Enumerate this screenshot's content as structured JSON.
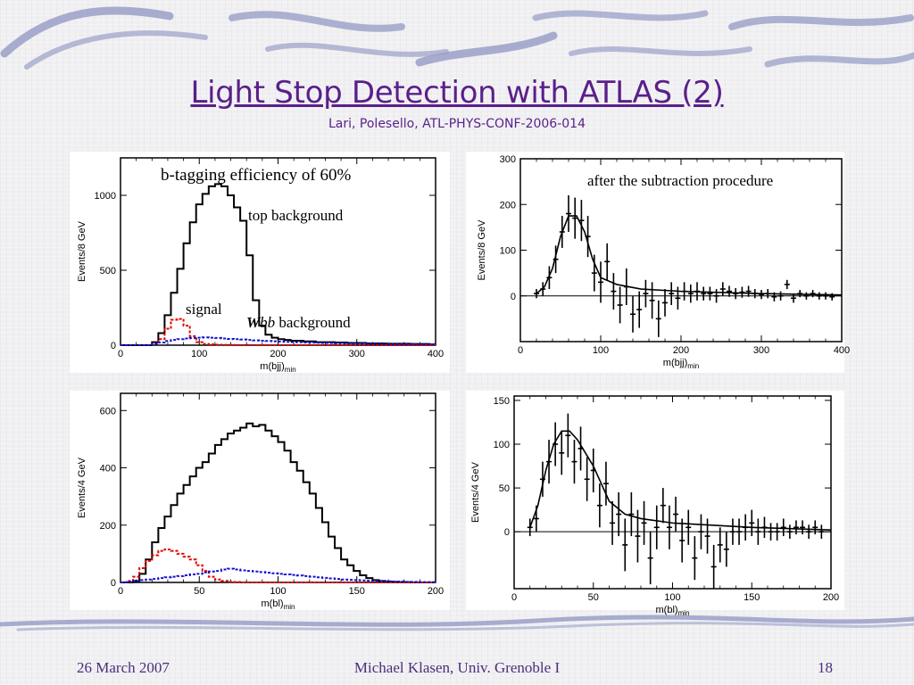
{
  "slide": {
    "title": "Light Stop Detection with ATLAS (2)",
    "subtitle": "Lari, Polesello, ATL-PHYS-CONF-2006-014",
    "footer_left": "26 March 2007",
    "footer_center": "Michael Klasen, Univ. Grenoble I",
    "footer_right": "18",
    "colors": {
      "title": "#5a1f8a",
      "footer": "#4a2d7a",
      "swirl": "#9aa0c8"
    }
  },
  "chart_data": [
    {
      "id": "p1",
      "type": "line",
      "xlabel": "m(bjj)",
      "xlabel_sub": "min",
      "ylabel": "Events/8 GeV",
      "xlim": [
        0,
        400
      ],
      "ylim": [
        0,
        1250
      ],
      "xticks": [
        0,
        100,
        200,
        300,
        400
      ],
      "yticks": [
        0,
        500,
        1000
      ],
      "annotations": [
        "b-tagging efficiency of 60%",
        "top background",
        "signal",
        "Wbb background"
      ],
      "binwidth": 8,
      "x": [
        0,
        8,
        16,
        24,
        32,
        40,
        48,
        56,
        64,
        72,
        80,
        88,
        96,
        104,
        112,
        120,
        128,
        136,
        144,
        152,
        160,
        168,
        176,
        184,
        192,
        200,
        208,
        216,
        224,
        232,
        240,
        248,
        256,
        264,
        272,
        280,
        288,
        296,
        304,
        312,
        320,
        328,
        336,
        344,
        352,
        360,
        368,
        376,
        384,
        392
      ],
      "series": [
        {
          "style": "solid-black",
          "values": [
            0,
            0,
            0,
            0,
            0,
            20,
            80,
            200,
            350,
            510,
            680,
            820,
            940,
            1010,
            1060,
            1075,
            1060,
            1000,
            920,
            830,
            600,
            300,
            130,
            70,
            50,
            40,
            35,
            30,
            30,
            25,
            25,
            20,
            20,
            20,
            18,
            18,
            15,
            15,
            15,
            12,
            12,
            12,
            10,
            10,
            10,
            10,
            8,
            8,
            8,
            5
          ]
        },
        {
          "style": "dashed-red",
          "values": [
            0,
            0,
            0,
            0,
            0,
            10,
            40,
            110,
            170,
            175,
            130,
            60,
            20,
            8,
            5,
            3,
            2,
            2,
            1,
            1,
            1,
            0,
            0,
            0,
            0,
            0,
            0,
            0,
            0,
            0,
            0,
            0,
            0,
            0,
            0,
            0,
            0,
            0,
            0,
            0,
            0,
            0,
            0,
            0,
            0,
            0,
            0,
            0,
            0,
            0
          ]
        },
        {
          "style": "dashed-blue",
          "values": [
            0,
            0,
            0,
            0,
            0,
            8,
            18,
            28,
            35,
            40,
            45,
            48,
            50,
            52,
            50,
            48,
            45,
            42,
            40,
            38,
            35,
            32,
            30,
            28,
            26,
            24,
            22,
            20,
            19,
            18,
            17,
            16,
            15,
            14,
            13,
            12,
            11,
            10,
            10,
            9,
            9,
            8,
            8,
            7,
            7,
            6,
            6,
            5,
            5,
            5
          ]
        }
      ]
    },
    {
      "id": "p2",
      "type": "scatter",
      "xlabel": "m(bjj)",
      "xlabel_sub": "min",
      "ylabel": "Events/8 GeV",
      "xlim": [
        0,
        400
      ],
      "ylim": [
        -100,
        300
      ],
      "xticks": [
        0,
        100,
        200,
        300,
        400
      ],
      "yticks": [
        0,
        100,
        200,
        300
      ],
      "annotations": [
        "after the subtraction procedure"
      ],
      "points": [
        {
          "x": 20,
          "y": 5,
          "err": 10
        },
        {
          "x": 28,
          "y": 15,
          "err": 15
        },
        {
          "x": 36,
          "y": 40,
          "err": 25
        },
        {
          "x": 44,
          "y": 80,
          "err": 30
        },
        {
          "x": 52,
          "y": 140,
          "err": 35
        },
        {
          "x": 60,
          "y": 180,
          "err": 40
        },
        {
          "x": 68,
          "y": 170,
          "err": 45
        },
        {
          "x": 76,
          "y": 165,
          "err": 45
        },
        {
          "x": 84,
          "y": 130,
          "err": 45
        },
        {
          "x": 92,
          "y": 50,
          "err": 40
        },
        {
          "x": 100,
          "y": 30,
          "err": 45
        },
        {
          "x": 108,
          "y": 75,
          "err": 40
        },
        {
          "x": 116,
          "y": 10,
          "err": 40
        },
        {
          "x": 124,
          "y": -20,
          "err": 40
        },
        {
          "x": 132,
          "y": 20,
          "err": 40
        },
        {
          "x": 140,
          "y": -40,
          "err": 40
        },
        {
          "x": 148,
          "y": -30,
          "err": 40
        },
        {
          "x": 156,
          "y": 5,
          "err": 30
        },
        {
          "x": 164,
          "y": -10,
          "err": 40
        },
        {
          "x": 172,
          "y": -50,
          "err": 40
        },
        {
          "x": 180,
          "y": -15,
          "err": 30
        },
        {
          "x": 188,
          "y": 5,
          "err": 25
        },
        {
          "x": 196,
          "y": -5,
          "err": 25
        },
        {
          "x": 204,
          "y": 10,
          "err": 20
        },
        {
          "x": 212,
          "y": 5,
          "err": 20
        },
        {
          "x": 220,
          "y": 10,
          "err": 20
        },
        {
          "x": 228,
          "y": 5,
          "err": 15
        },
        {
          "x": 236,
          "y": 5,
          "err": 15
        },
        {
          "x": 244,
          "y": 0,
          "err": 15
        },
        {
          "x": 252,
          "y": 15,
          "err": 15
        },
        {
          "x": 260,
          "y": 10,
          "err": 12
        },
        {
          "x": 268,
          "y": 5,
          "err": 12
        },
        {
          "x": 276,
          "y": 8,
          "err": 12
        },
        {
          "x": 284,
          "y": 10,
          "err": 12
        },
        {
          "x": 292,
          "y": 5,
          "err": 10
        },
        {
          "x": 300,
          "y": 3,
          "err": 10
        },
        {
          "x": 308,
          "y": 5,
          "err": 10
        },
        {
          "x": 316,
          "y": -2,
          "err": 10
        },
        {
          "x": 324,
          "y": 0,
          "err": 10
        },
        {
          "x": 332,
          "y": 25,
          "err": 10
        },
        {
          "x": 340,
          "y": -5,
          "err": 10
        },
        {
          "x": 348,
          "y": 5,
          "err": 8
        },
        {
          "x": 356,
          "y": 0,
          "err": 8
        },
        {
          "x": 364,
          "y": 5,
          "err": 8
        },
        {
          "x": 372,
          "y": 0,
          "err": 8
        },
        {
          "x": 380,
          "y": 0,
          "err": 8
        },
        {
          "x": 388,
          "y": -2,
          "err": 8
        }
      ],
      "fit": {
        "x": [
          20,
          30,
          40,
          50,
          60,
          70,
          80,
          90,
          100,
          120,
          150,
          200,
          300,
          400
        ],
        "y": [
          5,
          20,
          60,
          130,
          175,
          175,
          140,
          80,
          40,
          25,
          15,
          10,
          5,
          2
        ]
      }
    },
    {
      "id": "p3",
      "type": "line",
      "xlabel": "m(bl)",
      "xlabel_sub": "min",
      "ylabel": "Events/4 GeV",
      "xlim": [
        0,
        200
      ],
      "ylim": [
        0,
        660
      ],
      "xticks": [
        0,
        50,
        100,
        150,
        200
      ],
      "yticks": [
        0,
        200,
        400,
        600
      ],
      "binwidth": 4,
      "x": [
        0,
        4,
        8,
        12,
        16,
        20,
        24,
        28,
        32,
        36,
        40,
        44,
        48,
        52,
        56,
        60,
        64,
        68,
        72,
        76,
        80,
        84,
        88,
        92,
        96,
        100,
        104,
        108,
        112,
        116,
        120,
        124,
        128,
        132,
        136,
        140,
        144,
        148,
        152,
        156,
        160,
        164,
        168,
        172,
        176,
        180,
        184,
        188,
        192,
        196
      ],
      "series": [
        {
          "style": "solid-black",
          "values": [
            0,
            0,
            5,
            30,
            80,
            140,
            190,
            230,
            270,
            310,
            340,
            370,
            400,
            420,
            450,
            480,
            500,
            520,
            530,
            540,
            555,
            545,
            550,
            530,
            510,
            490,
            460,
            420,
            390,
            350,
            310,
            260,
            210,
            160,
            120,
            80,
            60,
            40,
            25,
            15,
            8,
            5,
            3,
            2,
            1,
            1,
            0,
            0,
            0,
            0
          ]
        },
        {
          "style": "dashed-red",
          "values": [
            0,
            5,
            20,
            50,
            75,
            95,
            110,
            115,
            110,
            100,
            90,
            80,
            60,
            40,
            20,
            10,
            5,
            2,
            1,
            0,
            0,
            0,
            0,
            0,
            0,
            0,
            0,
            0,
            0,
            0,
            0,
            0,
            0,
            0,
            0,
            0,
            0,
            0,
            0,
            0,
            0,
            0,
            0,
            0,
            0,
            0,
            0,
            0,
            0,
            0
          ]
        },
        {
          "style": "dashed-blue",
          "values": [
            0,
            2,
            5,
            8,
            10,
            12,
            15,
            18,
            20,
            22,
            25,
            28,
            30,
            35,
            38,
            40,
            45,
            48,
            45,
            42,
            40,
            38,
            36,
            34,
            32,
            30,
            28,
            26,
            24,
            22,
            20,
            18,
            16,
            14,
            12,
            10,
            9,
            8,
            7,
            6,
            5,
            5,
            4,
            3,
            3,
            2,
            2,
            1,
            1,
            1
          ]
        }
      ]
    },
    {
      "id": "p4",
      "type": "scatter",
      "xlabel": "m(bl)",
      "xlabel_sub": "min",
      "ylabel": "Events/4 GeV",
      "xlim": [
        0,
        200
      ],
      "ylim": [
        -65,
        155
      ],
      "xticks": [
        0,
        50,
        100,
        150,
        200
      ],
      "yticks": [
        0,
        50,
        100,
        150
      ],
      "points": [
        {
          "x": 10,
          "y": 5,
          "err": 10
        },
        {
          "x": 14,
          "y": 15,
          "err": 15
        },
        {
          "x": 18,
          "y": 60,
          "err": 20
        },
        {
          "x": 22,
          "y": 80,
          "err": 25
        },
        {
          "x": 26,
          "y": 100,
          "err": 25
        },
        {
          "x": 30,
          "y": 90,
          "err": 25
        },
        {
          "x": 34,
          "y": 110,
          "err": 25
        },
        {
          "x": 38,
          "y": 80,
          "err": 25
        },
        {
          "x": 42,
          "y": 95,
          "err": 25
        },
        {
          "x": 46,
          "y": 60,
          "err": 25
        },
        {
          "x": 50,
          "y": 70,
          "err": 25
        },
        {
          "x": 54,
          "y": 30,
          "err": 25
        },
        {
          "x": 58,
          "y": 55,
          "err": 25
        },
        {
          "x": 62,
          "y": 10,
          "err": 25
        },
        {
          "x": 66,
          "y": 20,
          "err": 25
        },
        {
          "x": 70,
          "y": -15,
          "err": 30
        },
        {
          "x": 74,
          "y": 20,
          "err": 25
        },
        {
          "x": 78,
          "y": -5,
          "err": 30
        },
        {
          "x": 82,
          "y": 10,
          "err": 25
        },
        {
          "x": 86,
          "y": -30,
          "err": 30
        },
        {
          "x": 90,
          "y": 5,
          "err": 25
        },
        {
          "x": 94,
          "y": 30,
          "err": 20
        },
        {
          "x": 98,
          "y": 5,
          "err": 25
        },
        {
          "x": 102,
          "y": 20,
          "err": 20
        },
        {
          "x": 106,
          "y": -10,
          "err": 25
        },
        {
          "x": 110,
          "y": 5,
          "err": 20
        },
        {
          "x": 114,
          "y": -30,
          "err": 25
        },
        {
          "x": 118,
          "y": 0,
          "err": 20
        },
        {
          "x": 122,
          "y": -5,
          "err": 20
        },
        {
          "x": 126,
          "y": -40,
          "err": 25
        },
        {
          "x": 130,
          "y": -15,
          "err": 20
        },
        {
          "x": 134,
          "y": -20,
          "err": 20
        },
        {
          "x": 138,
          "y": 0,
          "err": 15
        },
        {
          "x": 142,
          "y": 0,
          "err": 15
        },
        {
          "x": 146,
          "y": 5,
          "err": 15
        },
        {
          "x": 150,
          "y": 10,
          "err": 15
        },
        {
          "x": 154,
          "y": 0,
          "err": 15
        },
        {
          "x": 158,
          "y": 5,
          "err": 12
        },
        {
          "x": 162,
          "y": 0,
          "err": 10
        },
        {
          "x": 166,
          "y": 0,
          "err": 10
        },
        {
          "x": 170,
          "y": 5,
          "err": 10
        },
        {
          "x": 174,
          "y": 0,
          "err": 8
        },
        {
          "x": 178,
          "y": 5,
          "err": 8
        },
        {
          "x": 182,
          "y": 5,
          "err": 8
        },
        {
          "x": 186,
          "y": 0,
          "err": 8
        },
        {
          "x": 190,
          "y": 5,
          "err": 8
        },
        {
          "x": 194,
          "y": 0,
          "err": 8
        }
      ],
      "fit": {
        "x": [
          10,
          15,
          20,
          25,
          30,
          35,
          40,
          45,
          50,
          55,
          60,
          70,
          80,
          100,
          150,
          200
        ],
        "y": [
          5,
          30,
          70,
          100,
          115,
          115,
          105,
          90,
          75,
          55,
          35,
          20,
          15,
          10,
          5,
          2
        ]
      }
    }
  ]
}
